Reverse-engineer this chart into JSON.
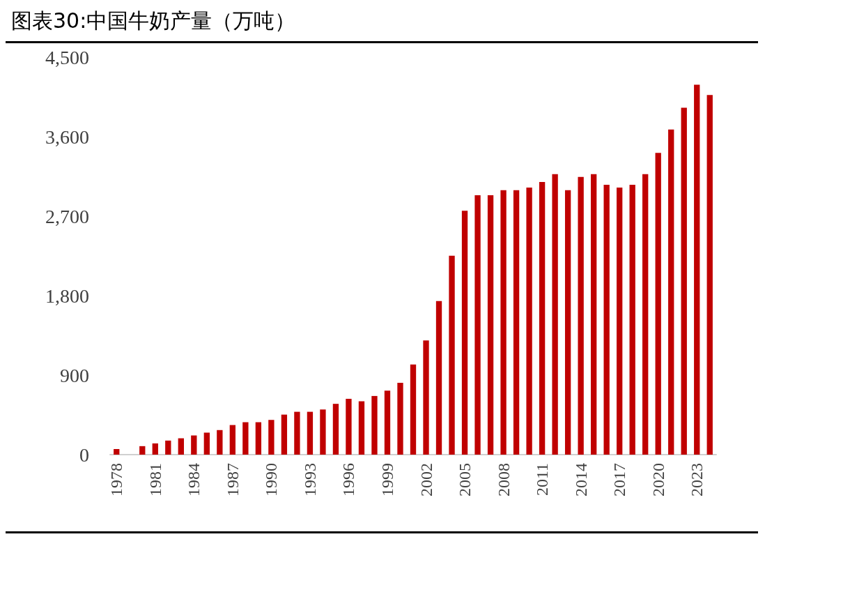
{
  "chart_data": {
    "type": "bar",
    "title": "图表30:中国牛奶产量（万吨）",
    "categories": [
      "1978",
      null,
      null,
      "1981",
      null,
      null,
      "1984",
      null,
      null,
      "1987",
      null,
      null,
      "1990",
      null,
      null,
      "1993",
      null,
      null,
      "1996",
      null,
      null,
      "1999",
      null,
      null,
      "2002",
      null,
      null,
      "2005",
      null,
      null,
      "2008",
      null,
      null,
      "2011",
      null,
      null,
      "2014",
      null,
      null,
      "2017",
      null,
      null,
      "2020",
      null,
      null,
      "2023",
      null
    ],
    "values": [
      63,
      null,
      96,
      127,
      159,
      185,
      217,
      249,
      278,
      335,
      367,
      367,
      393,
      453,
      485,
      485,
      511,
      575,
      632,
      603,
      664,
      724,
      814,
      1021,
      1293,
      1739,
      2251,
      2761,
      2937,
      2937,
      2994,
      2994,
      3023,
      3087,
      3176,
      2994,
      3144,
      3176,
      3055,
      3023,
      3055,
      3176,
      3416,
      3681,
      3927,
      4189,
      4071
    ],
    "color": "#c00000",
    "ylim": [
      0,
      4500
    ],
    "yticks": [
      {
        "value": 0,
        "label": "0"
      },
      {
        "value": 900,
        "label": "900"
      },
      {
        "value": 1800,
        "label": "1,800"
      },
      {
        "value": 2700,
        "label": "2,700"
      },
      {
        "value": 3600,
        "label": "3,600"
      },
      {
        "value": 4500,
        "label": "4,500"
      }
    ],
    "grid": false
  }
}
